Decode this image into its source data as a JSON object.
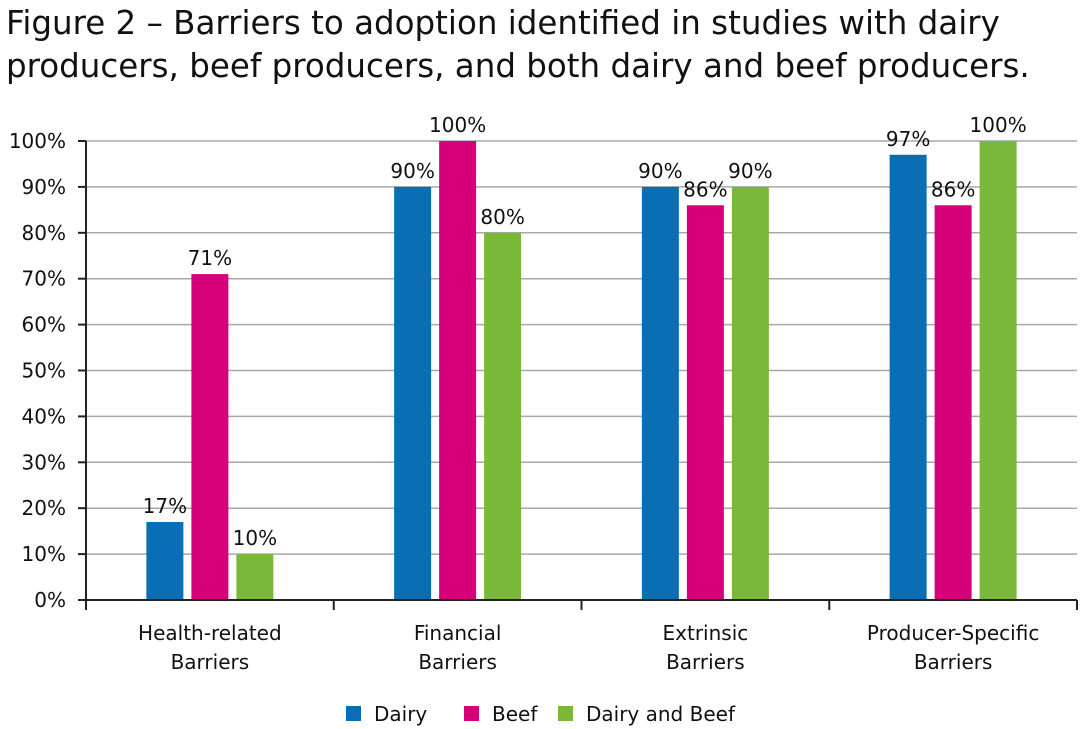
{
  "title": "Figure 2 – Barriers to adoption identified in studies with dairy producers, beef producers, and both dairy and beef producers.",
  "chart_data": {
    "type": "bar",
    "categories": [
      [
        "Health-related",
        "Barriers"
      ],
      [
        "Financial",
        "Barriers"
      ],
      [
        "Extrinsic",
        "Barriers"
      ],
      [
        "Producer-Specific",
        "Barriers"
      ]
    ],
    "series": [
      {
        "name": "Dairy",
        "color": "#0a6eb4",
        "values": [
          17,
          90,
          90,
          97
        ]
      },
      {
        "name": "Beef",
        "color": "#d6007a",
        "values": [
          71,
          100,
          86,
          86
        ]
      },
      {
        "name": "Dairy and Beef",
        "color": "#7ab83a",
        "values": [
          10,
          80,
          90,
          100
        ]
      }
    ],
    "ylim": [
      0,
      100
    ],
    "yticks": [
      "0%",
      "10%",
      "20%",
      "30%",
      "40%",
      "50%",
      "60%",
      "70%",
      "80%",
      "90%",
      "100%"
    ],
    "grid": true,
    "legend_position": "bottom-center"
  }
}
